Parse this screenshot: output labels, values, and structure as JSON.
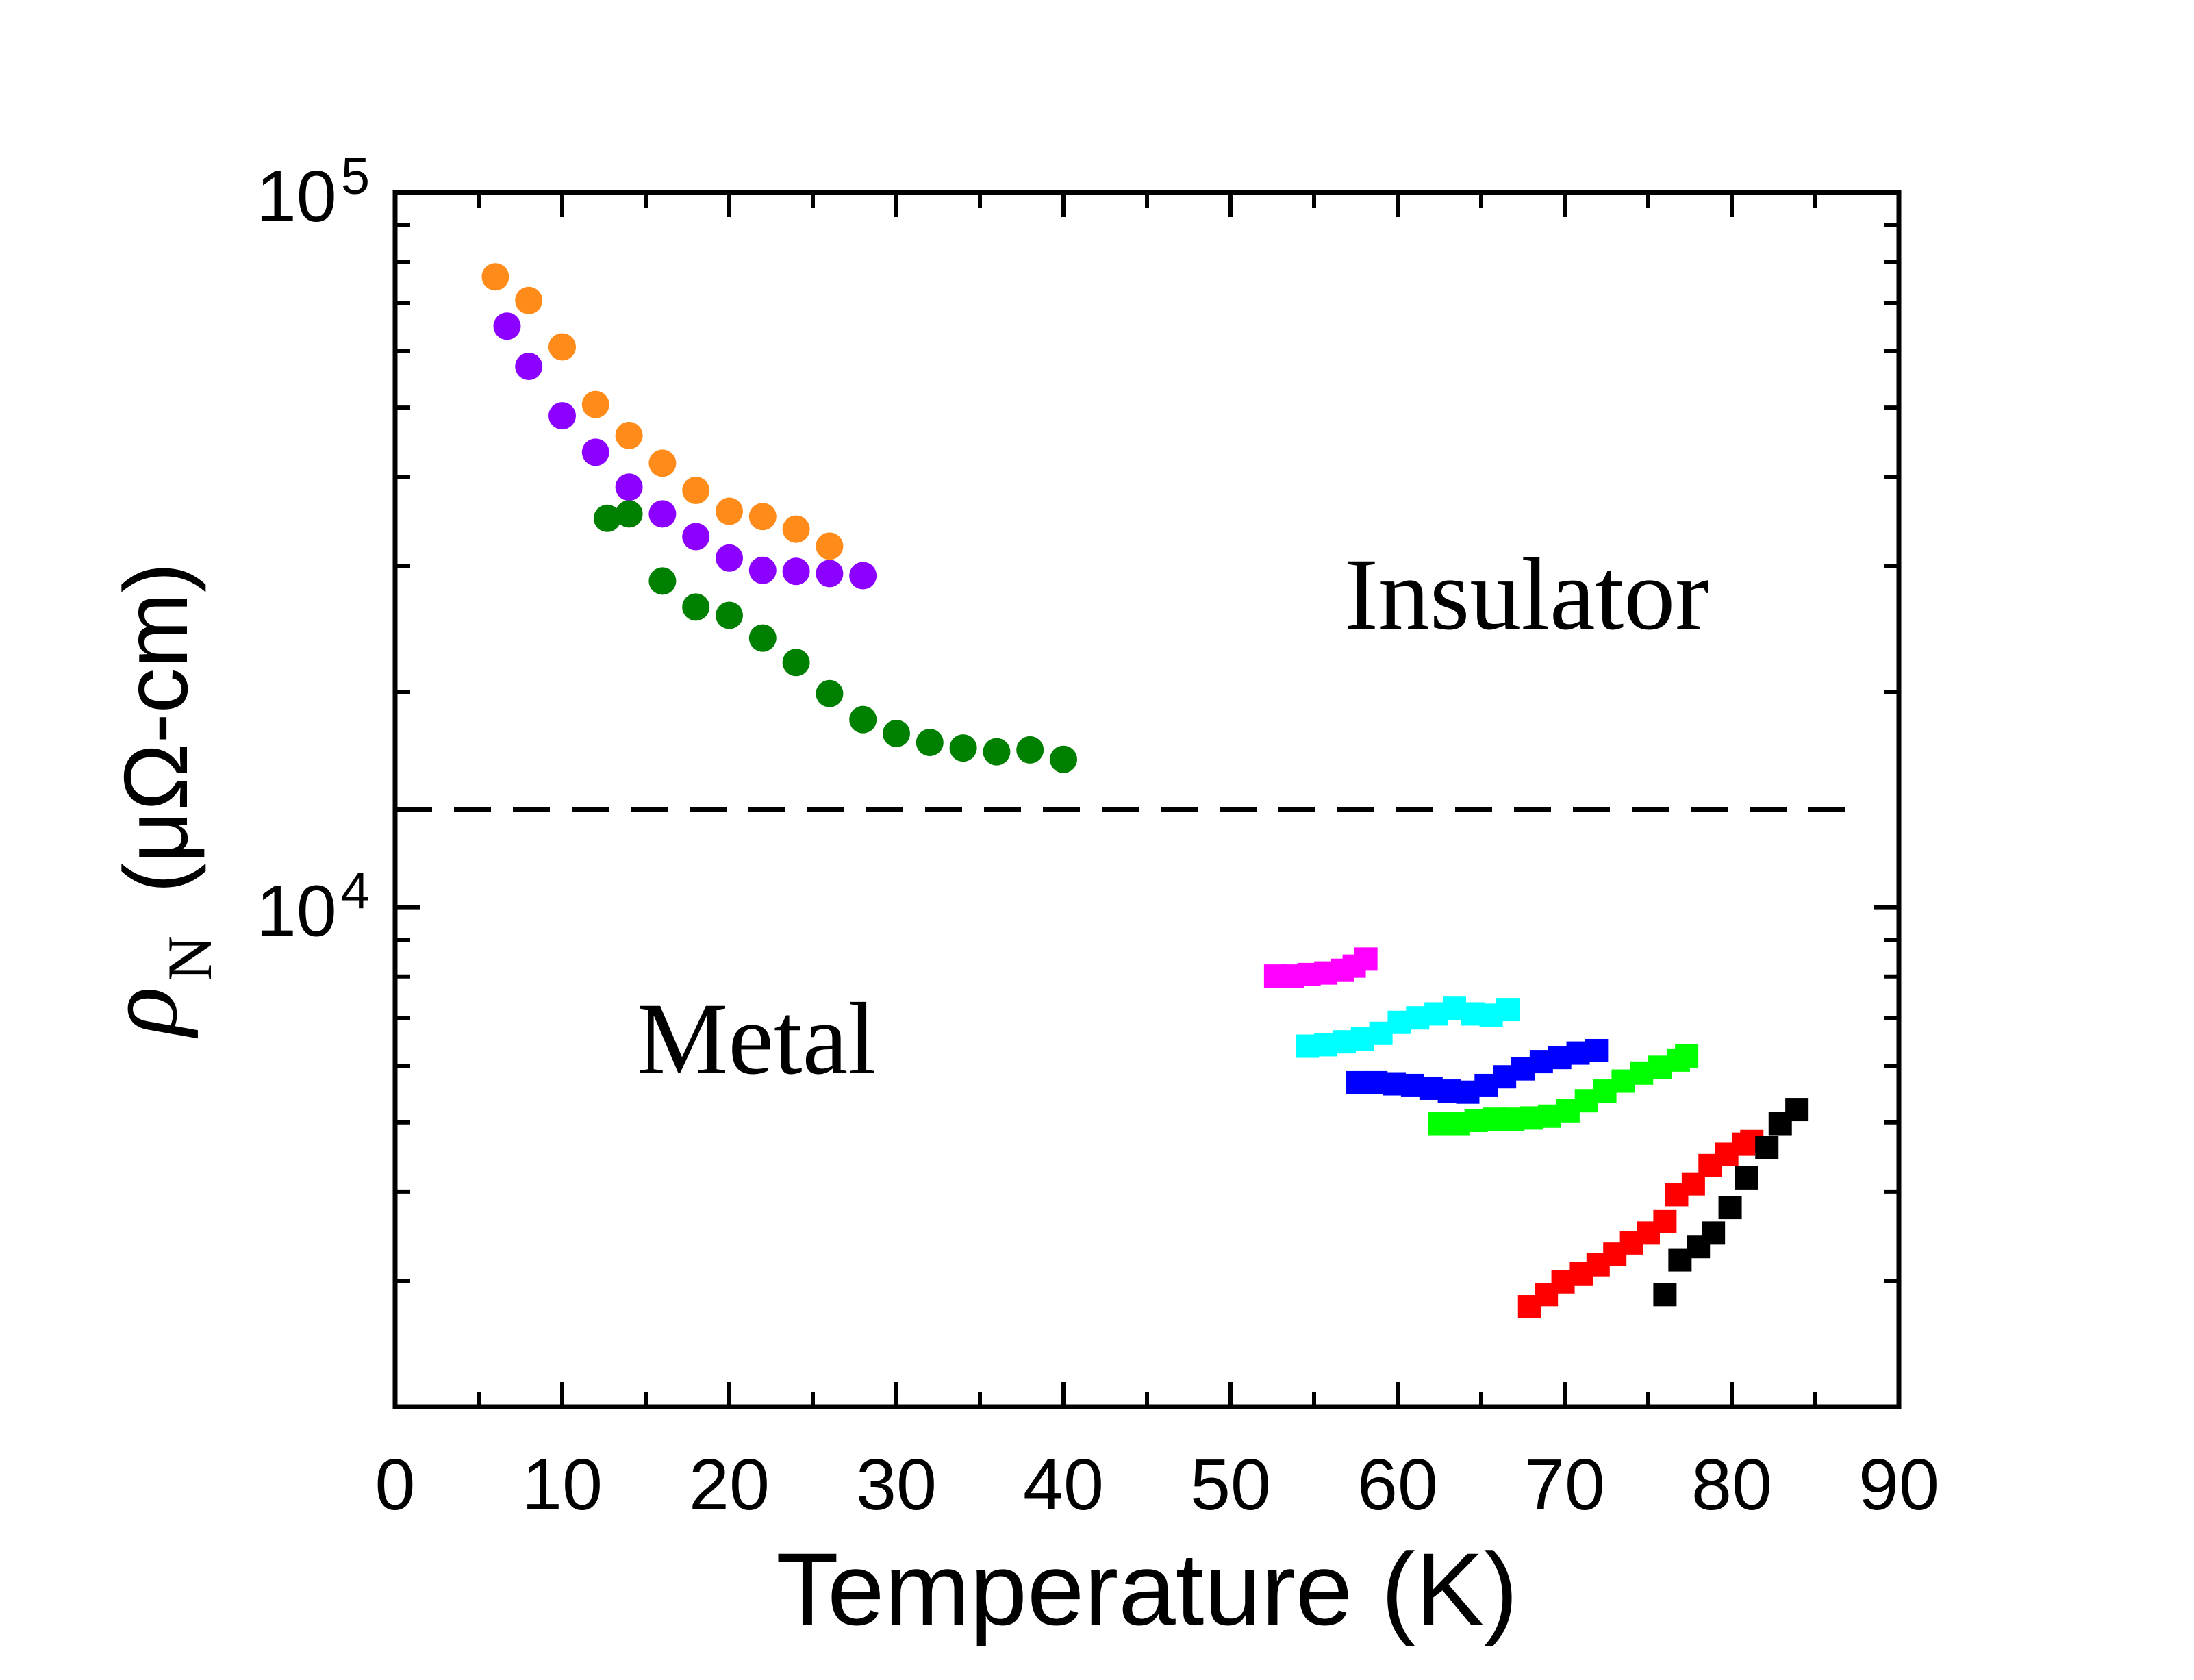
{
  "chart_data": {
    "type": "scatter",
    "xlabel": "Temperature (K)",
    "ylabel": {
      "symbol": "ρ",
      "subscript": "N",
      "unit": "(μΩ-cm)"
    },
    "xlim": [
      0,
      90
    ],
    "ylim": [
      2000,
      100000
    ],
    "yscale": "log",
    "xticks": [
      0,
      10,
      20,
      30,
      40,
      50,
      60,
      70,
      80,
      90
    ],
    "yticks": [
      {
        "value": 10000,
        "base": "10",
        "exp": "4"
      },
      {
        "value": 100000,
        "base": "10",
        "exp": "5"
      }
    ],
    "reference_line": {
      "y": 13700,
      "x_range": [
        0,
        88
      ]
    },
    "region_labels": {
      "insulator": "Insulator",
      "metal": "Metal"
    },
    "series": [
      {
        "marker": "circle",
        "color": "#FF8C1A",
        "x": [
          6,
          8,
          10,
          12,
          14,
          16,
          18,
          20,
          22,
          24,
          26
        ],
        "y": [
          76200,
          70600,
          60800,
          50500,
          45700,
          41800,
          38300,
          35800,
          35200,
          33800,
          32000
        ]
      },
      {
        "marker": "circle",
        "color": "#8C00FF",
        "x": [
          6.7,
          8,
          10,
          12,
          14,
          16,
          18,
          20,
          22,
          24,
          26,
          28
        ],
        "y": [
          65000,
          57100,
          48700,
          43300,
          38700,
          35500,
          33000,
          30800,
          29600,
          29500,
          29300,
          29100
        ]
      },
      {
        "marker": "circle",
        "color": "#008000",
        "x": [
          12.7,
          14,
          16,
          18,
          20,
          22,
          24,
          26,
          28,
          30,
          32,
          34,
          36,
          38,
          40
        ],
        "y": [
          35000,
          35500,
          28600,
          26300,
          25600,
          23800,
          22000,
          19900,
          18300,
          17500,
          17000,
          16700,
          16500,
          16600,
          16100
        ]
      },
      {
        "marker": "square",
        "color": "#FF00FF",
        "x": [
          52.7,
          53.7,
          54.7,
          55.7,
          56.7,
          57.4,
          58.1
        ],
        "y": [
          8010,
          8010,
          8050,
          8090,
          8160,
          8270,
          8460
        ]
      },
      {
        "marker": "square",
        "color": "#00FFFF",
        "x": [
          54.6,
          55.7,
          56.8,
          57.9,
          59.0,
          60.1,
          61.2,
          62.3,
          63.4,
          64.5,
          65.6,
          66.6
        ],
        "y": [
          6390,
          6420,
          6480,
          6540,
          6660,
          6900,
          7000,
          7090,
          7220,
          7090,
          7060,
          7190
        ]
      },
      {
        "marker": "square",
        "color": "#0000FF",
        "x": [
          57.6,
          58.7,
          59.8,
          60.9,
          62.0,
          63.1,
          64.2,
          65.3,
          66.4,
          67.5,
          68.6,
          69.7,
          70.8,
          71.9
        ],
        "y": [
          5680,
          5680,
          5660,
          5630,
          5580,
          5530,
          5510,
          5630,
          5790,
          5940,
          6080,
          6160,
          6250,
          6300
        ]
      },
      {
        "marker": "square",
        "color": "#00FF00",
        "x": [
          62.5,
          63.6,
          64.7,
          65.8,
          66.9,
          68.0,
          69.1,
          70.2,
          71.3,
          72.4,
          73.5,
          74.6,
          75.7,
          76.8,
          77.3
        ],
        "y": [
          4980,
          4980,
          5030,
          5050,
          5050,
          5070,
          5100,
          5190,
          5360,
          5530,
          5710,
          5860,
          5970,
          6110,
          6190
        ]
      },
      {
        "marker": "square",
        "color": "#FF0000",
        "x": [
          67.9,
          68.9,
          69.9,
          71.0,
          72.0,
          73.0,
          74.0,
          75.0,
          76.0,
          76.7,
          77.7,
          78.7,
          79.7,
          80.7,
          81.2
        ],
        "y": [
          2760,
          2870,
          2990,
          3070,
          3160,
          3270,
          3390,
          3500,
          3630,
          3960,
          4100,
          4350,
          4510,
          4660,
          4700
        ]
      },
      {
        "marker": "square",
        "color": "#000000",
        "x": [
          76.0,
          76.9,
          78.0,
          78.9,
          79.9,
          80.9,
          82.1,
          82.9,
          83.9
        ],
        "y": [
          2870,
          3210,
          3350,
          3500,
          3800,
          4180,
          4610,
          4980,
          5210
        ]
      }
    ]
  }
}
